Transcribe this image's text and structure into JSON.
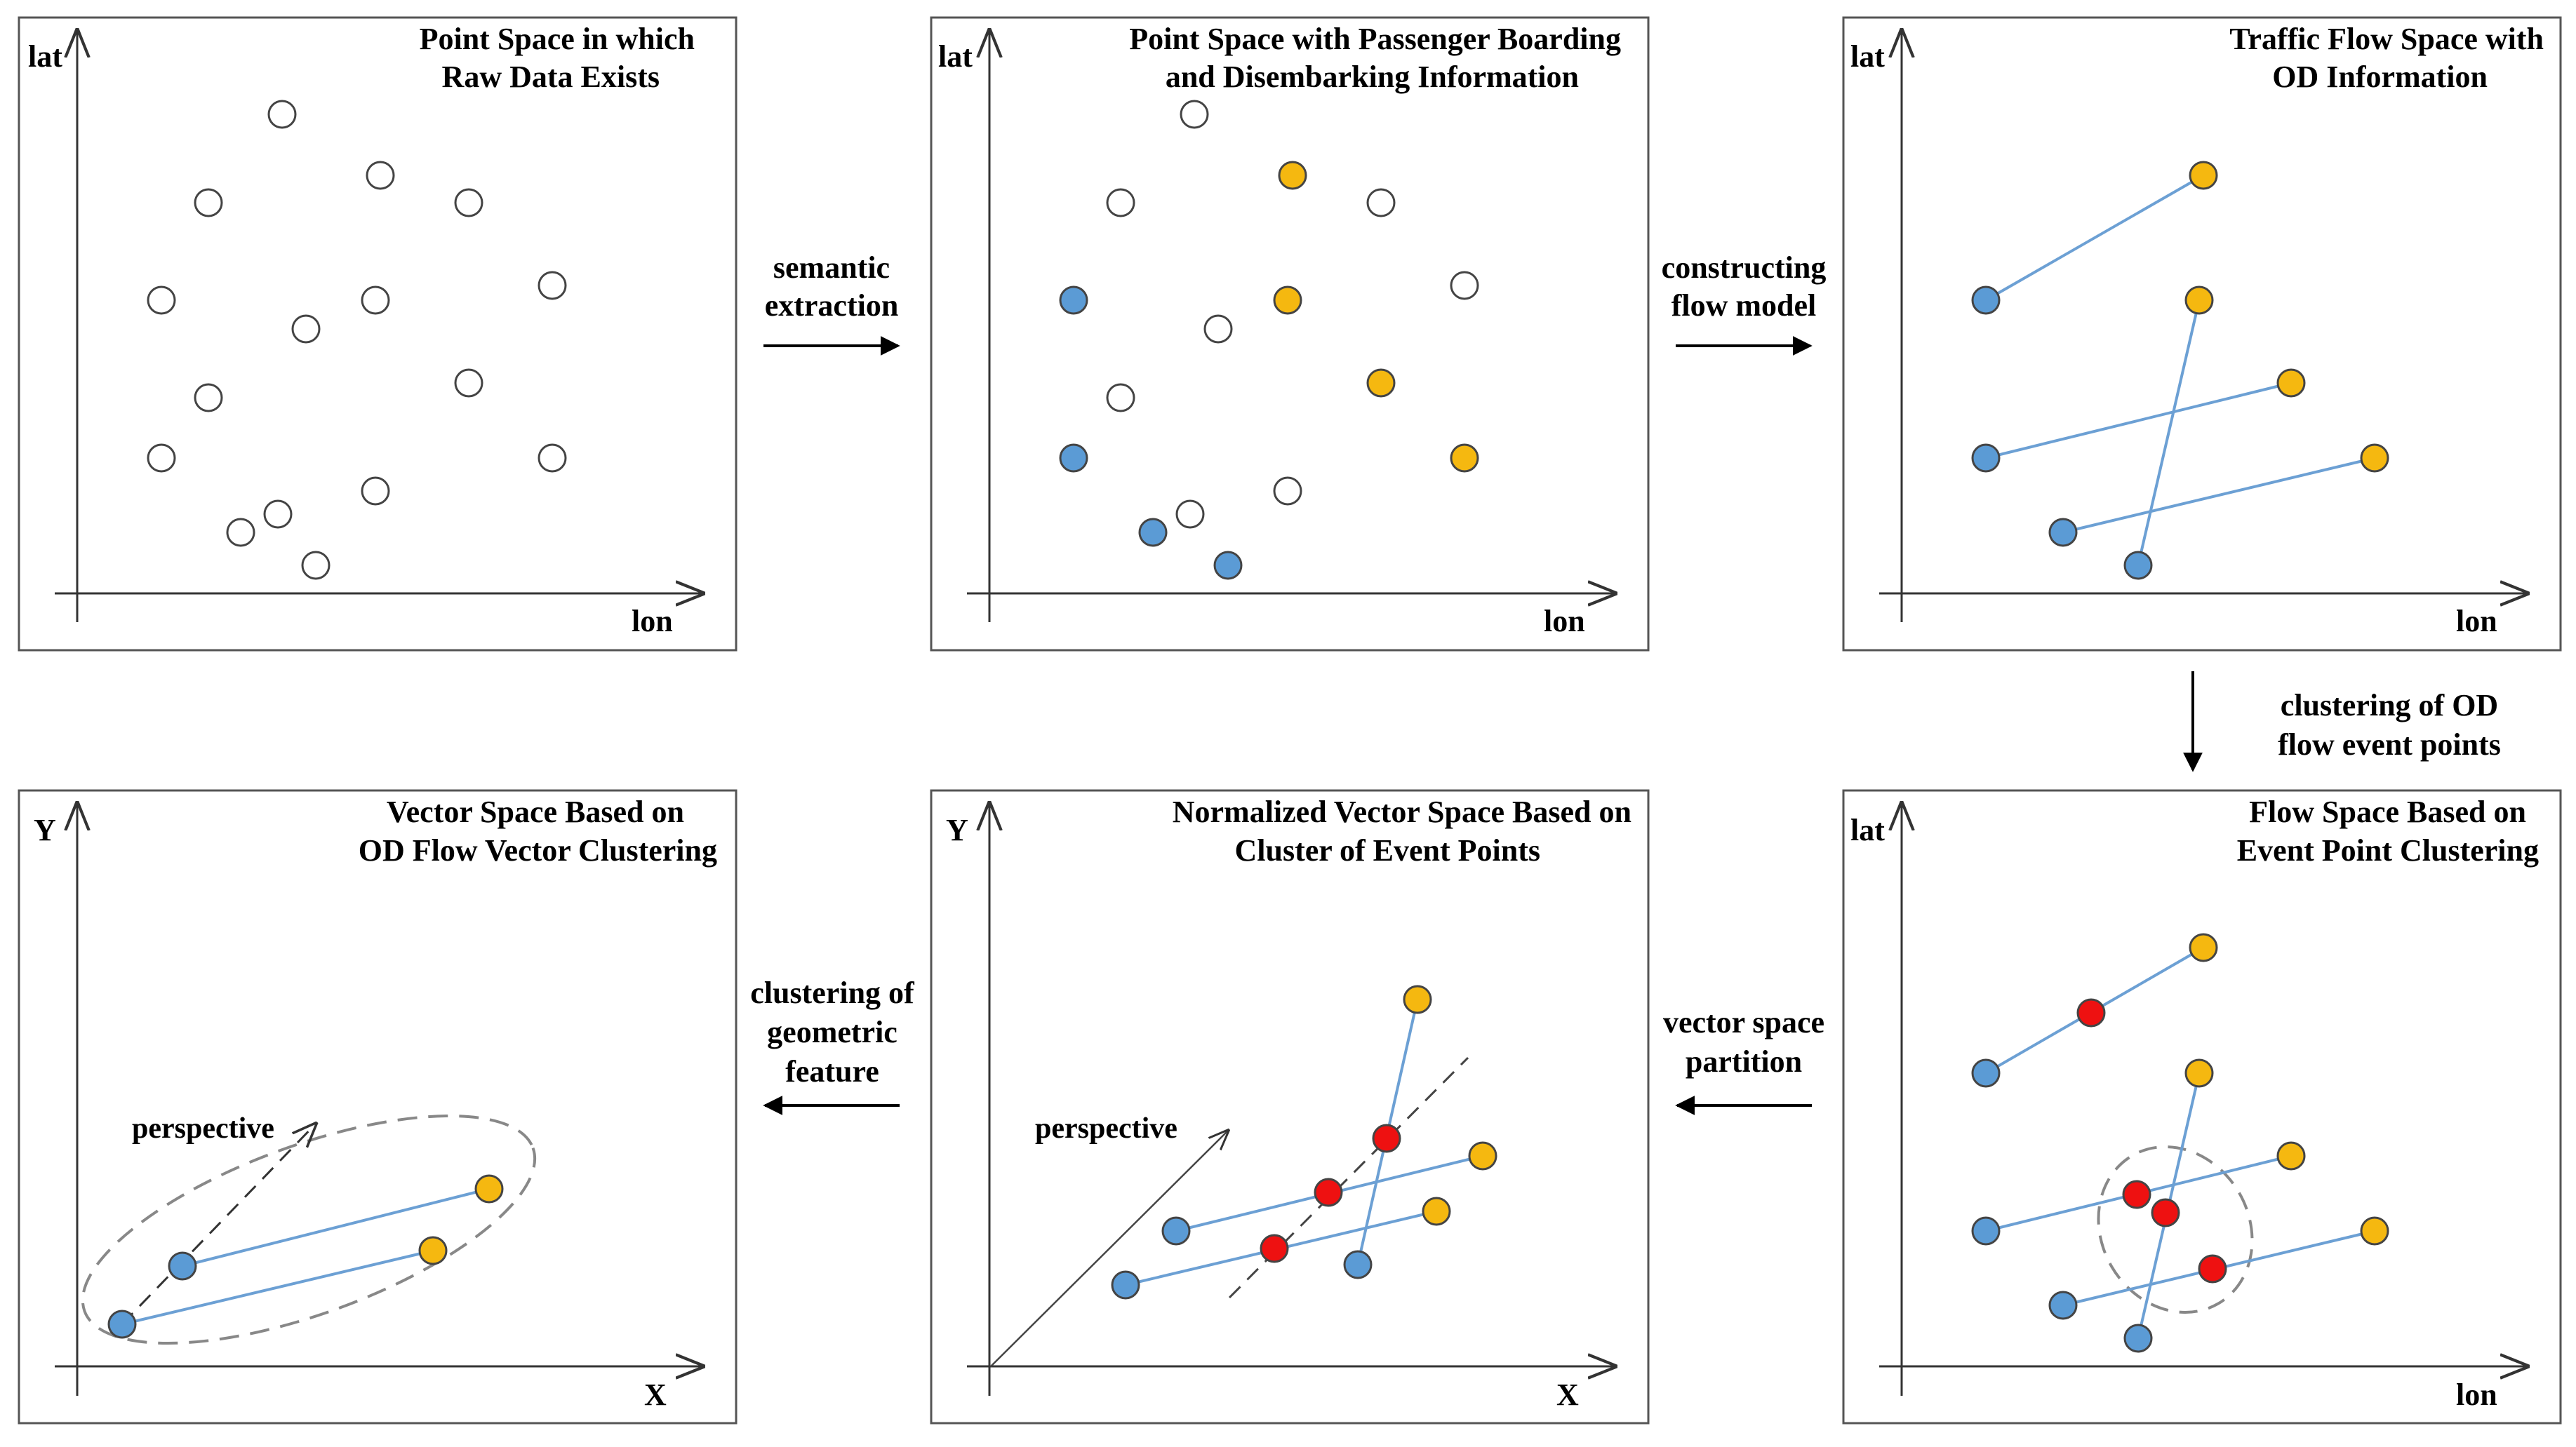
{
  "colors": {
    "origin": "#5b9bd5",
    "destination": "#f5b810",
    "event": "#ee1111",
    "raw": "#ffffff",
    "flow_line": "#6ca0d4",
    "cluster_ellipse": "#888888"
  },
  "panels": [
    {
      "id": "p1",
      "title_lines": [
        "Point Space in which",
        "Raw Data Exists"
      ],
      "y_label": "lat",
      "x_label": "lon"
    },
    {
      "id": "p2",
      "title_lines": [
        "Point Space with Passenger Boarding",
        "and Disembarking Information"
      ],
      "y_label": "lat",
      "x_label": "lon"
    },
    {
      "id": "p3",
      "title_lines": [
        "Traffic Flow Space with",
        "OD Information"
      ],
      "y_label": "lat",
      "x_label": "lon"
    },
    {
      "id": "p4",
      "title_lines": [
        "Vector Space Based on",
        "OD Flow Vector Clustering"
      ],
      "y_label": "Y",
      "x_label": "X"
    },
    {
      "id": "p5",
      "title_lines": [
        "Normalized Vector Space Based on",
        "Cluster of Event Points"
      ],
      "y_label": "Y",
      "x_label": "X"
    },
    {
      "id": "p6",
      "title_lines": [
        "Flow Space Based on",
        "Event Point Clustering"
      ],
      "y_label": "lat",
      "x_label": "lon"
    }
  ],
  "arrows": [
    {
      "id": "a12",
      "label_lines": [
        "semantic",
        "extraction"
      ]
    },
    {
      "id": "a23",
      "label_lines": [
        "constructing",
        "flow model"
      ]
    },
    {
      "id": "a36",
      "label_lines": [
        "clustering of OD",
        "flow event points"
      ]
    },
    {
      "id": "a65",
      "label_lines": [
        "vector space",
        "partition"
      ]
    },
    {
      "id": "a54",
      "label_lines": [
        "clustering of",
        "geometric",
        "feature"
      ]
    }
  ],
  "perspective_label": "perspective"
}
